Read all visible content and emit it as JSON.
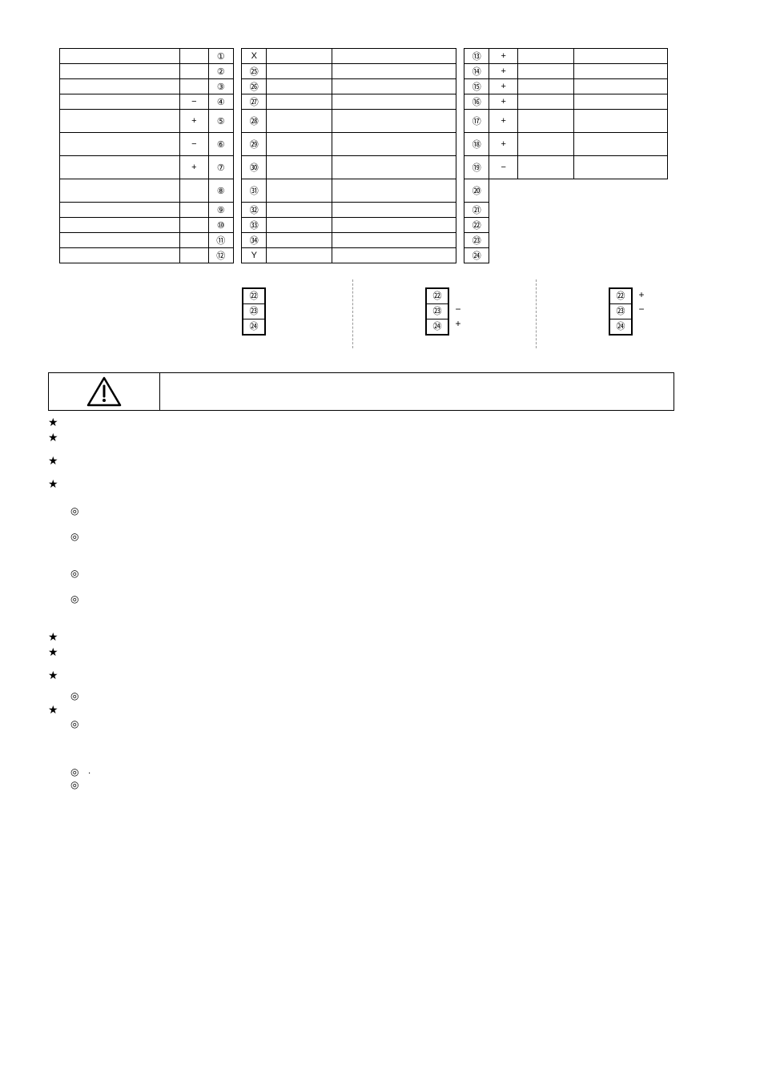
{
  "colors": {
    "text": "#000000",
    "background": "#ffffff",
    "border": "#000000",
    "dash": "#999999"
  },
  "font": {
    "family": "Arial",
    "size_pt": 8
  },
  "table_left": [
    {
      "label": "",
      "sign": "",
      "num": "①"
    },
    {
      "label": "",
      "sign": "",
      "num": "②"
    },
    {
      "label": "",
      "sign": "",
      "num": "③"
    },
    {
      "label": "",
      "sign": "−",
      "num": "④"
    },
    {
      "label": "",
      "sign": "+",
      "num": "⑤",
      "tall": true
    },
    {
      "label": "",
      "sign": "−",
      "num": "⑥",
      "tall": true
    },
    {
      "label": "",
      "sign": "+",
      "num": "⑦",
      "tall": true
    },
    {
      "label": "",
      "sign": "",
      "num": "⑧",
      "tall": true
    },
    {
      "label": "",
      "sign": "",
      "num": "⑨"
    },
    {
      "label": "",
      "sign": "",
      "num": "⑩"
    },
    {
      "label": "",
      "sign": "",
      "num": "⑪"
    },
    {
      "label": "",
      "sign": "",
      "num": "⑫"
    }
  ],
  "table_mid": [
    {
      "label": "",
      "num": "X",
      "val": ""
    },
    {
      "label": "",
      "num": "㉕",
      "val": ""
    },
    {
      "label": "",
      "num": "㉖",
      "val": ""
    },
    {
      "label": "",
      "num": "㉗",
      "val": ""
    },
    {
      "label": "",
      "num": "㉘",
      "val": "",
      "tall": true
    },
    {
      "label": "",
      "num": "㉙",
      "val": "",
      "tall": true
    },
    {
      "label": "",
      "num": "㉚",
      "val": "",
      "tall": true
    },
    {
      "label": "",
      "num": "㉛",
      "val": "",
      "tall": true
    },
    {
      "label": "",
      "num": "㉜",
      "val": ""
    },
    {
      "label": "",
      "num": "㉝",
      "val": ""
    },
    {
      "label": "",
      "num": "㉞",
      "val": ""
    },
    {
      "label": "",
      "num": "Y",
      "val": ""
    }
  ],
  "table_right": [
    {
      "label": "",
      "num": "⑬",
      "sign": "+",
      "val": "",
      "x": ""
    },
    {
      "label": "",
      "num": "⑭",
      "sign": "+",
      "val": "",
      "x": ""
    },
    {
      "label": "",
      "num": "⑮",
      "sign": "+",
      "val": "",
      "x": ""
    },
    {
      "label": "",
      "num": "⑯",
      "sign": "+",
      "val": "",
      "x": ""
    },
    {
      "label": "",
      "num": "⑰",
      "sign": "+",
      "val": "",
      "x": "",
      "tall": true
    },
    {
      "label": "",
      "num": "⑱",
      "sign": "+",
      "val": "",
      "x": "",
      "tall": true
    },
    {
      "label": "",
      "num": "⑲",
      "sign": "−",
      "val": "",
      "x": "",
      "tall": true
    },
    {
      "label": "",
      "num": "⑳",
      "sign": "",
      "val": "",
      "x": "",
      "tall": true,
      "no_sign_border": true
    },
    {
      "label": "",
      "num": "㉑",
      "sign": "",
      "val": "",
      "x": "",
      "no_sign_border": true
    },
    {
      "label": "",
      "num": "㉒",
      "sign": "",
      "val": "",
      "x": "",
      "no_sign_border": true
    },
    {
      "label": "",
      "num": "㉓",
      "sign": "",
      "val": "",
      "x": "",
      "no_sign_border": true
    },
    {
      "label": "",
      "num": "㉔",
      "sign": "",
      "val": "",
      "x": "",
      "no_sign_border": true
    }
  ],
  "stacks": [
    {
      "cells": [
        "㉒",
        "㉓",
        "㉔"
      ],
      "signs": [
        "",
        "",
        ""
      ]
    },
    {
      "cells": [
        "㉒",
        "㉓",
        "㉔"
      ],
      "signs": [
        "",
        "−",
        "+"
      ]
    },
    {
      "cells": [
        "㉒",
        "㉓",
        "㉔"
      ],
      "signs": [
        "+",
        "−",
        ""
      ]
    }
  ],
  "caution_text": "",
  "notes": [
    {
      "type": "star",
      "text": ""
    },
    {
      "type": "star",
      "text": ""
    },
    {
      "type": "gap"
    },
    {
      "type": "star",
      "text": ""
    },
    {
      "type": "gap"
    },
    {
      "type": "star",
      "text": ""
    },
    {
      "type": "blank"
    },
    {
      "type": "circ",
      "text": ""
    },
    {
      "type": "blank"
    },
    {
      "type": "circ",
      "text": ""
    },
    {
      "type": "blank"
    },
    {
      "type": "blank"
    },
    {
      "type": "circ",
      "text": ""
    },
    {
      "type": "blank"
    },
    {
      "type": "circ",
      "text": ""
    },
    {
      "type": "blank"
    },
    {
      "type": "blank"
    },
    {
      "type": "star",
      "text": ""
    },
    {
      "type": "star",
      "text": ""
    },
    {
      "type": "gap"
    },
    {
      "type": "star",
      "text": ""
    },
    {
      "type": "circblank"
    },
    {
      "type": "circ",
      "text": ""
    },
    {
      "type": "star",
      "text": ""
    },
    {
      "type": "circ",
      "text": ""
    },
    {
      "type": "blank"
    },
    {
      "type": "blank"
    },
    {
      "type": "blank"
    },
    {
      "type": "circ",
      "text": "."
    },
    {
      "type": "circ",
      "text": ""
    }
  ],
  "page_number": ""
}
